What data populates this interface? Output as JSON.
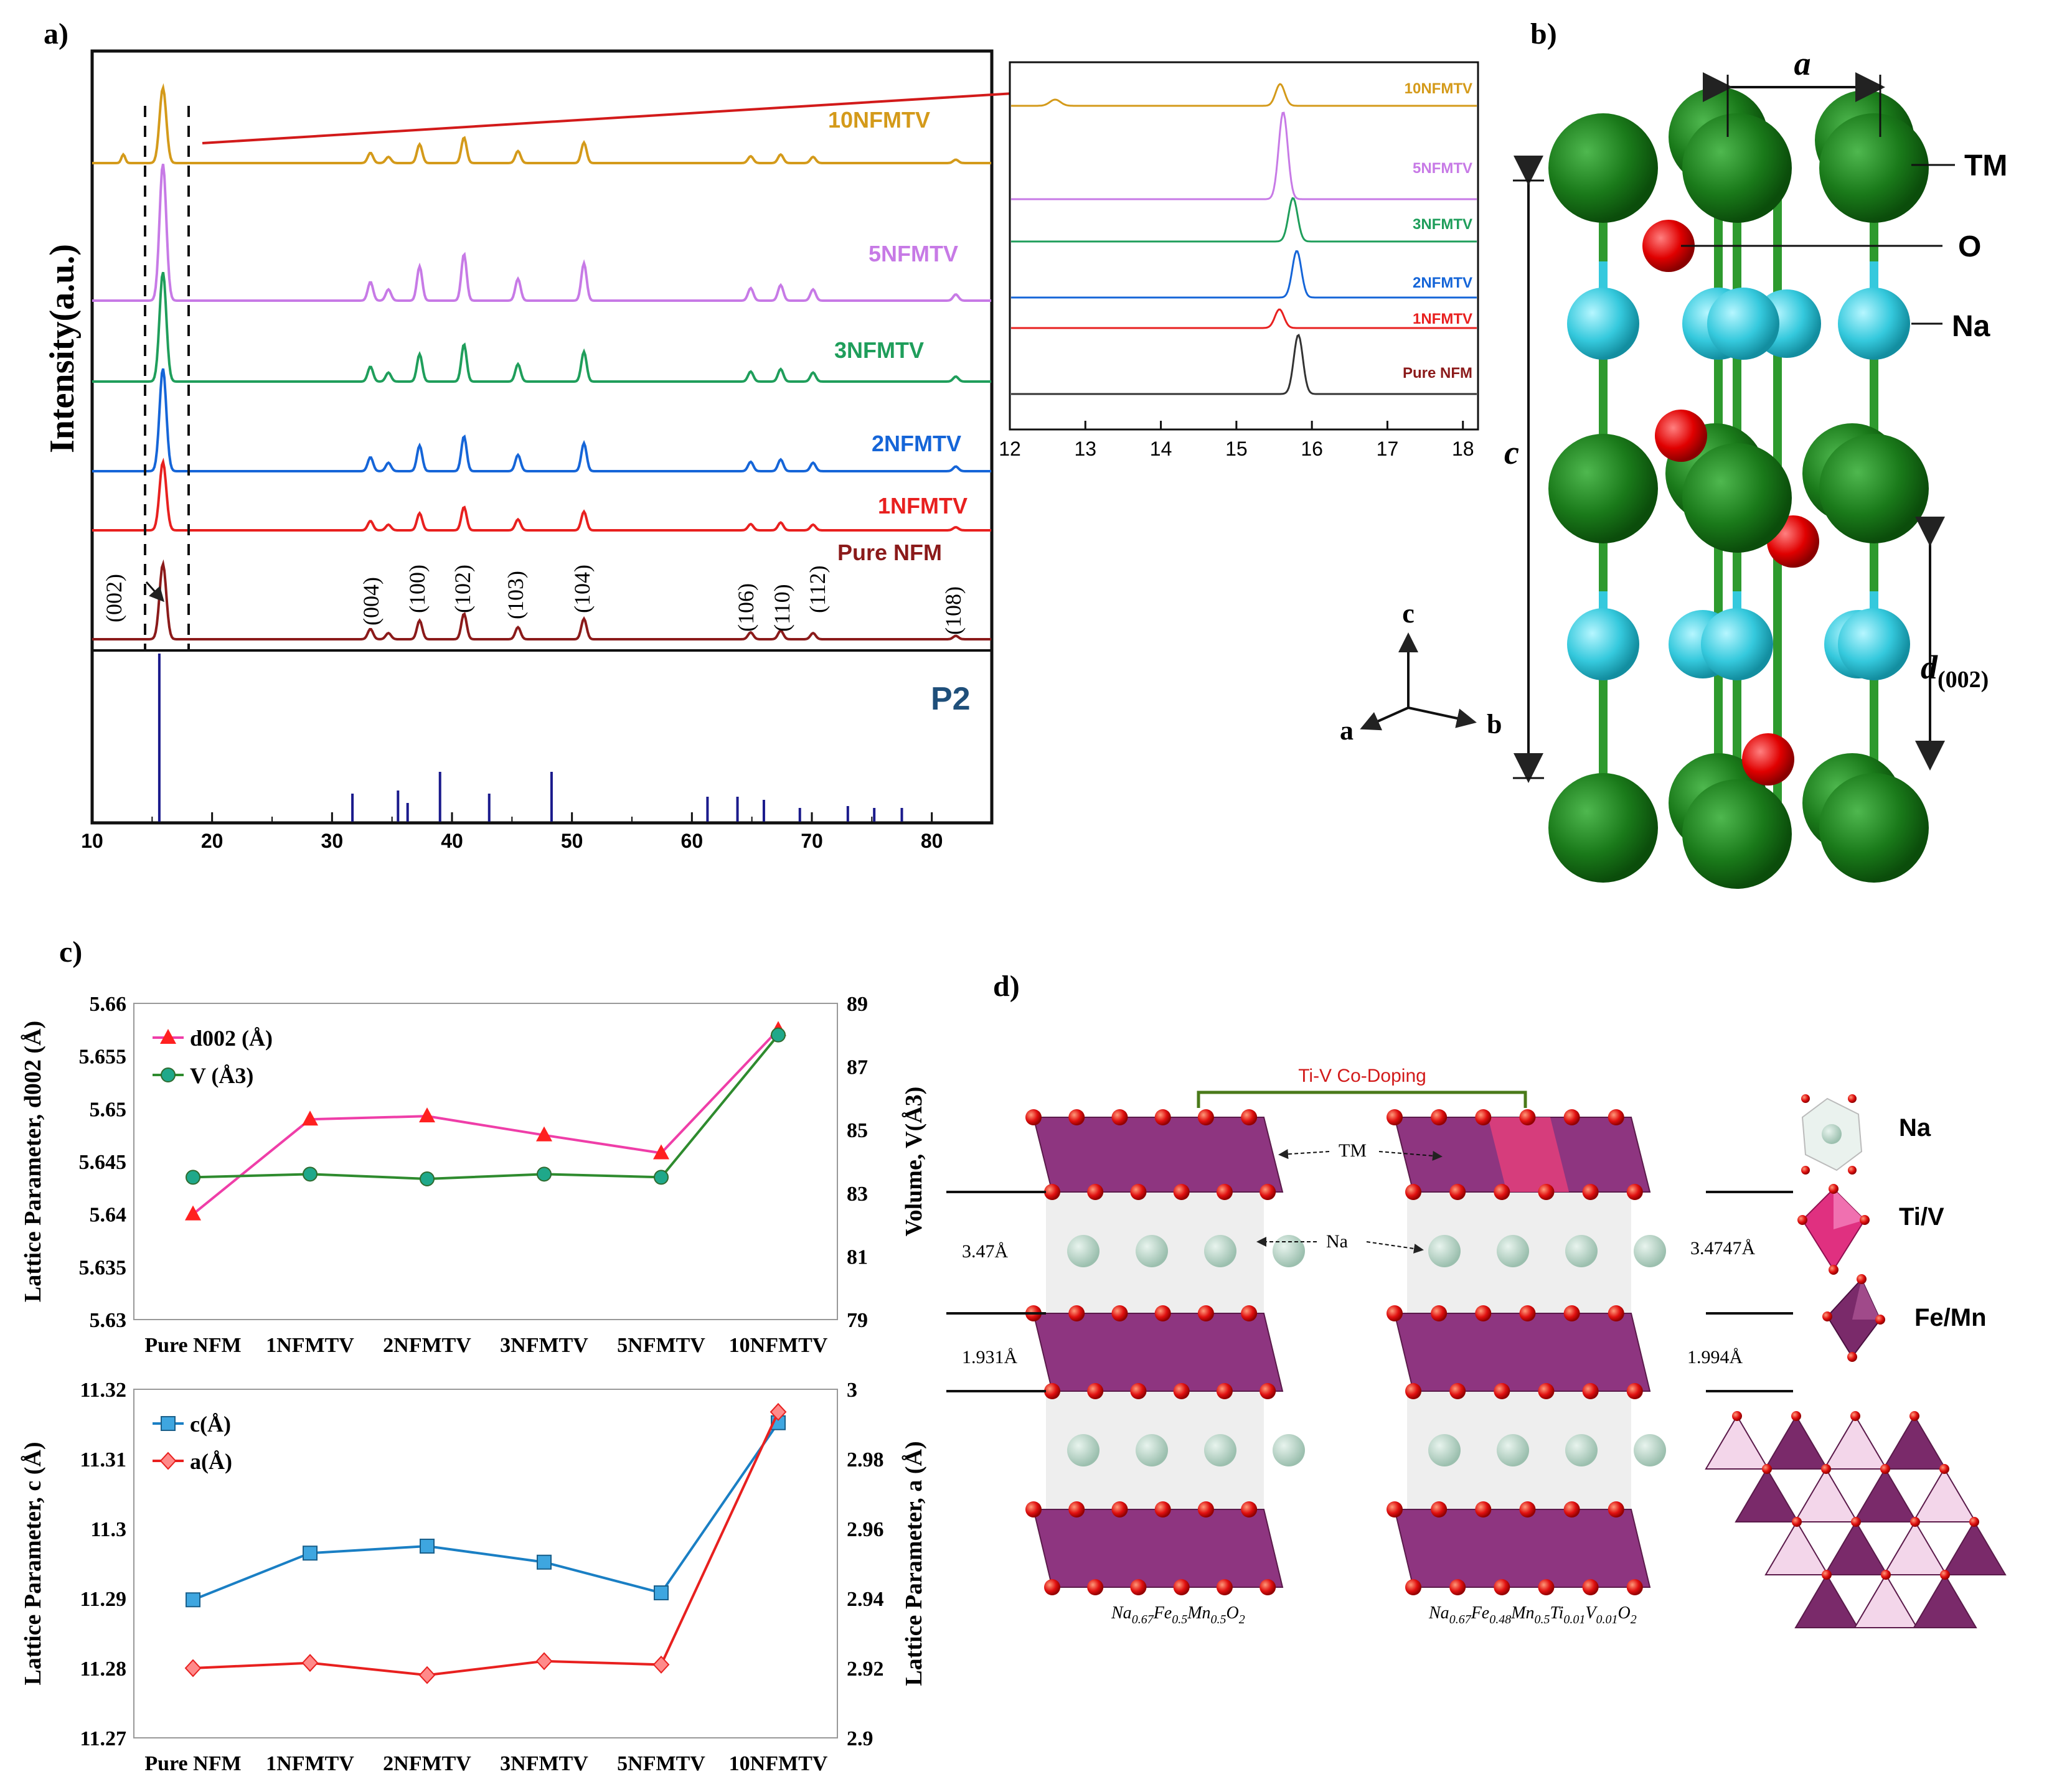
{
  "panels": {
    "a": "a)",
    "b": "b)",
    "c": "c)",
    "d": "d)"
  },
  "panel_a": {
    "ylabel": "Intensity(a.u.)",
    "x_ticks": [
      "10",
      "20",
      "30",
      "40",
      "50",
      "60",
      "70",
      "80"
    ],
    "samples": [
      {
        "label": "10NFMTV",
        "color": "#d49a1a"
      },
      {
        "label": "5NFMTV",
        "color": "#c77ae6"
      },
      {
        "label": "3NFMTV",
        "color": "#1f9e5b"
      },
      {
        "label": "2NFMTV",
        "color": "#1565d8"
      },
      {
        "label": "1NFMTV",
        "color": "#e8201f"
      },
      {
        "label": "Pure NFM",
        "color": "#8b1a1a"
      }
    ],
    "hkl": [
      "(002)",
      "(004)",
      "(100)",
      "(102)",
      "(103)",
      "(104)",
      "(106)",
      "(110)",
      "(112)",
      "(108)"
    ],
    "reference_label": "P2",
    "reference_sticks": [
      15.6,
      31.7,
      35.5,
      36.3,
      39.0,
      43.1,
      48.3,
      61.3,
      63.8,
      66.0,
      69.0,
      73.0,
      75.2,
      77.5
    ],
    "inset": {
      "x_ticks": [
        "12",
        "13",
        "14",
        "15",
        "16",
        "17",
        "18"
      ],
      "labels": [
        "10NFMTV",
        "5NFMTV",
        "3NFMTV",
        "2NFMTV",
        "1NFMTV",
        "Pure NFM"
      ]
    }
  },
  "panel_b": {
    "labels": {
      "a": "a",
      "TM": "TM",
      "O": "O",
      "Na": "Na",
      "c": "c",
      "d": "d",
      "d_sub": "(002)",
      "axis_c": "c",
      "axis_a": "a",
      "axis_b": "b"
    }
  },
  "chart_data": [
    {
      "type": "line",
      "categories": [
        "Pure NFM",
        "1NFMTV",
        "2NFMTV",
        "3NFMTV",
        "5NFMTV",
        "10NFMTV"
      ],
      "ylabel": "Lattice Parameter,  d002 (Å)",
      "y2label": "Volume,  V(Å3)",
      "ylim": [
        5.63,
        5.66
      ],
      "y_ticks": [
        "5.63",
        "5.635",
        "5.64",
        "5.645",
        "5.65",
        "5.655",
        "5.66"
      ],
      "y2lim": [
        79,
        89
      ],
      "y2_ticks": [
        "79",
        "81",
        "83",
        "85",
        "87",
        "89"
      ],
      "series": [
        {
          "name": "d002 (Å)",
          "axis": "left",
          "color": "#ef3ea8",
          "marker": "triangle",
          "values": [
            5.64,
            5.649,
            5.6493,
            5.6475,
            5.6458,
            5.6575
          ]
        },
        {
          "name": "V (Å3)",
          "axis": "right",
          "color": "#2e8b2e",
          "marker": "circle",
          "values": [
            83.5,
            83.6,
            83.45,
            83.6,
            83.5,
            88.0
          ]
        }
      ]
    },
    {
      "type": "line",
      "categories": [
        "Pure NFM",
        "1NFMTV",
        "2NFMTV",
        "3NFMTV",
        "5NFMTV",
        "10NFMTV"
      ],
      "ylabel": "Lattice Parameter,  c (Å)",
      "y2label": "Lattice Parameter,  a (Å)",
      "ylim": [
        11.27,
        11.32
      ],
      "y_ticks": [
        "11.27",
        "11.28",
        "11.29",
        "11.3",
        "11.31",
        "11.32"
      ],
      "y2lim": [
        2.9,
        3.0
      ],
      "y2_ticks": [
        "2.9",
        "2.92",
        "2.94",
        "2.96",
        "2.98",
        "3"
      ],
      "series": [
        {
          "name": "c(Å)",
          "axis": "left",
          "color": "#1a7fc4",
          "marker": "square",
          "values": [
            11.2898,
            11.2965,
            11.2975,
            11.2952,
            11.2908,
            11.3152
          ]
        },
        {
          "name": "a(Å)",
          "axis": "right",
          "color": "#e8201f",
          "marker": "diamond",
          "values": [
            2.92,
            2.9215,
            2.918,
            2.922,
            2.921,
            2.9935
          ]
        }
      ]
    }
  ],
  "panel_d": {
    "codoping": "Ti-V Co-Doping",
    "tm": "TM",
    "na": "Na",
    "left_top_spacing": "3.47Å",
    "left_bot_spacing": "1.931Å",
    "right_top_spacing": "3.4747Å",
    "right_bot_spacing": "1.994Å",
    "formula_left": "Na0.67Fe0.5Mn0.5O2",
    "formula_right": "Na0.67Fe0.48Mn0.5Ti0.01V0.01O2",
    "legend": [
      "Na",
      "Ti/V",
      "Fe/Mn"
    ]
  }
}
